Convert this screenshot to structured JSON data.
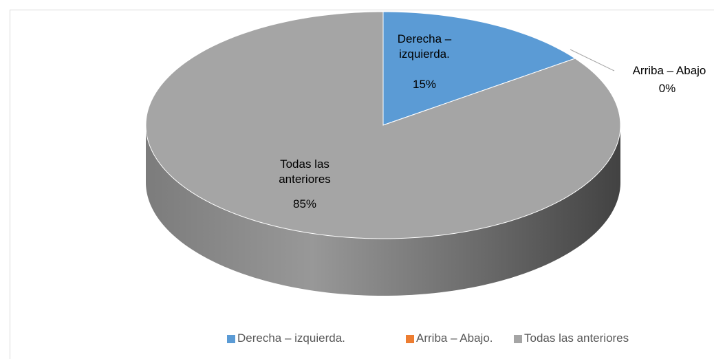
{
  "chart_data": {
    "type": "pie3d",
    "categories": [
      "Derecha – izquierda.",
      "Arriba – Abajo.",
      "Todas las anteriores"
    ],
    "values": [
      15,
      0,
      85
    ],
    "value_labels": [
      "15%",
      "0%",
      "85%"
    ],
    "data_label_names": [
      "Derecha – izquierda.",
      "Arriba – Abajo",
      "Todas las anteriores"
    ],
    "colors": [
      "#5b9bd5",
      "#ed7d31",
      "#a5a5a5"
    ],
    "legend": "bottom"
  }
}
